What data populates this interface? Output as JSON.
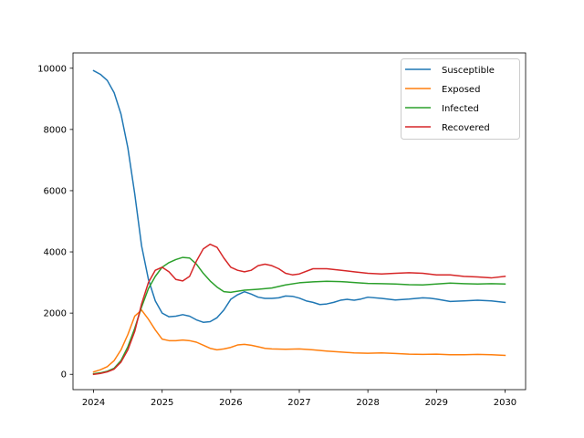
{
  "chart_data": {
    "type": "line",
    "title": "",
    "xlabel": "",
    "ylabel": "",
    "xlim": [
      2023.7,
      2030.3
    ],
    "ylim": [
      -500,
      10500
    ],
    "x_ticks": [
      2024,
      2025,
      2026,
      2027,
      2028,
      2029,
      2030
    ],
    "y_ticks": [
      0,
      2000,
      4000,
      6000,
      8000,
      10000
    ],
    "grid": false,
    "legend_position": "top-right",
    "series": [
      {
        "name": "Susceptible",
        "color": "#1f77b4",
        "x": [
          2024.0,
          2024.1,
          2024.2,
          2024.3,
          2024.4,
          2024.5,
          2024.6,
          2024.7,
          2024.8,
          2024.9,
          2025.0,
          2025.1,
          2025.2,
          2025.3,
          2025.4,
          2025.5,
          2025.6,
          2025.7,
          2025.8,
          2025.9,
          2026.0,
          2026.1,
          2026.2,
          2026.3,
          2026.4,
          2026.5,
          2026.6,
          2026.7,
          2026.8,
          2026.9,
          2027.0,
          2027.1,
          2027.2,
          2027.3,
          2027.4,
          2027.5,
          2027.6,
          2027.7,
          2027.8,
          2027.9,
          2028.0,
          2028.2,
          2028.4,
          2028.6,
          2028.8,
          2028.9,
          2029.0,
          2029.2,
          2029.4,
          2029.6,
          2029.8,
          2030.0
        ],
        "values": [
          9920,
          9800,
          9600,
          9200,
          8500,
          7400,
          5900,
          4200,
          3100,
          2400,
          2000,
          1880,
          1900,
          1950,
          1900,
          1780,
          1700,
          1720,
          1850,
          2100,
          2450,
          2600,
          2700,
          2620,
          2520,
          2480,
          2480,
          2500,
          2560,
          2550,
          2490,
          2400,
          2350,
          2280,
          2300,
          2350,
          2420,
          2450,
          2420,
          2460,
          2520,
          2480,
          2430,
          2460,
          2500,
          2490,
          2460,
          2380,
          2400,
          2420,
          2400,
          2350
        ]
      },
      {
        "name": "Exposed",
        "color": "#ff7f0e",
        "x": [
          2024.0,
          2024.1,
          2024.2,
          2024.3,
          2024.4,
          2024.5,
          2024.6,
          2024.7,
          2024.8,
          2024.9,
          2025.0,
          2025.1,
          2025.2,
          2025.3,
          2025.4,
          2025.5,
          2025.6,
          2025.7,
          2025.8,
          2025.9,
          2026.0,
          2026.1,
          2026.2,
          2026.3,
          2026.4,
          2026.5,
          2026.6,
          2026.8,
          2027.0,
          2027.2,
          2027.4,
          2027.6,
          2027.8,
          2028.0,
          2028.2,
          2028.4,
          2028.6,
          2028.8,
          2029.0,
          2029.2,
          2029.4,
          2029.6,
          2029.8,
          2030.0
        ],
        "values": [
          80,
          150,
          250,
          450,
          800,
          1300,
          1900,
          2100,
          1800,
          1450,
          1150,
          1100,
          1100,
          1120,
          1100,
          1050,
          950,
          850,
          800,
          830,
          880,
          960,
          980,
          950,
          900,
          850,
          830,
          820,
          830,
          800,
          760,
          730,
          700,
          690,
          700,
          680,
          660,
          650,
          660,
          640,
          640,
          650,
          640,
          620
        ]
      },
      {
        "name": "Infected",
        "color": "#2ca02c",
        "x": [
          2024.0,
          2024.1,
          2024.2,
          2024.3,
          2024.4,
          2024.5,
          2024.6,
          2024.7,
          2024.8,
          2024.9,
          2025.0,
          2025.1,
          2025.2,
          2025.3,
          2025.4,
          2025.5,
          2025.6,
          2025.7,
          2025.8,
          2025.9,
          2026.0,
          2026.2,
          2026.4,
          2026.6,
          2026.8,
          2027.0,
          2027.2,
          2027.4,
          2027.6,
          2027.8,
          2028.0,
          2028.2,
          2028.4,
          2028.6,
          2028.8,
          2029.0,
          2029.2,
          2029.4,
          2029.6,
          2029.8,
          2030.0
        ],
        "values": [
          20,
          50,
          100,
          200,
          450,
          900,
          1500,
          2200,
          2800,
          3200,
          3500,
          3650,
          3750,
          3820,
          3800,
          3600,
          3300,
          3050,
          2850,
          2700,
          2680,
          2750,
          2780,
          2820,
          2920,
          2990,
          3020,
          3040,
          3030,
          3000,
          2970,
          2960,
          2950,
          2930,
          2920,
          2950,
          2980,
          2960,
          2950,
          2960,
          2950
        ]
      },
      {
        "name": "Recovered",
        "color": "#d62728",
        "x": [
          2024.0,
          2024.1,
          2024.2,
          2024.3,
          2024.4,
          2024.5,
          2024.6,
          2024.7,
          2024.8,
          2024.9,
          2025.0,
          2025.1,
          2025.2,
          2025.3,
          2025.4,
          2025.5,
          2025.6,
          2025.7,
          2025.8,
          2025.9,
          2026.0,
          2026.1,
          2026.2,
          2026.3,
          2026.4,
          2026.5,
          2026.6,
          2026.7,
          2026.8,
          2026.9,
          2027.0,
          2027.2,
          2027.4,
          2027.6,
          2027.8,
          2028.0,
          2028.2,
          2028.4,
          2028.6,
          2028.8,
          2029.0,
          2029.2,
          2029.4,
          2029.6,
          2029.8,
          2030.0
        ],
        "values": [
          0,
          30,
          80,
          170,
          400,
          800,
          1400,
          2300,
          3000,
          3400,
          3500,
          3350,
          3100,
          3050,
          3200,
          3700,
          4100,
          4250,
          4150,
          3800,
          3500,
          3400,
          3350,
          3400,
          3550,
          3600,
          3550,
          3450,
          3300,
          3250,
          3280,
          3450,
          3450,
          3400,
          3350,
          3300,
          3280,
          3300,
          3320,
          3300,
          3250,
          3250,
          3200,
          3180,
          3150,
          3200
        ]
      }
    ]
  }
}
